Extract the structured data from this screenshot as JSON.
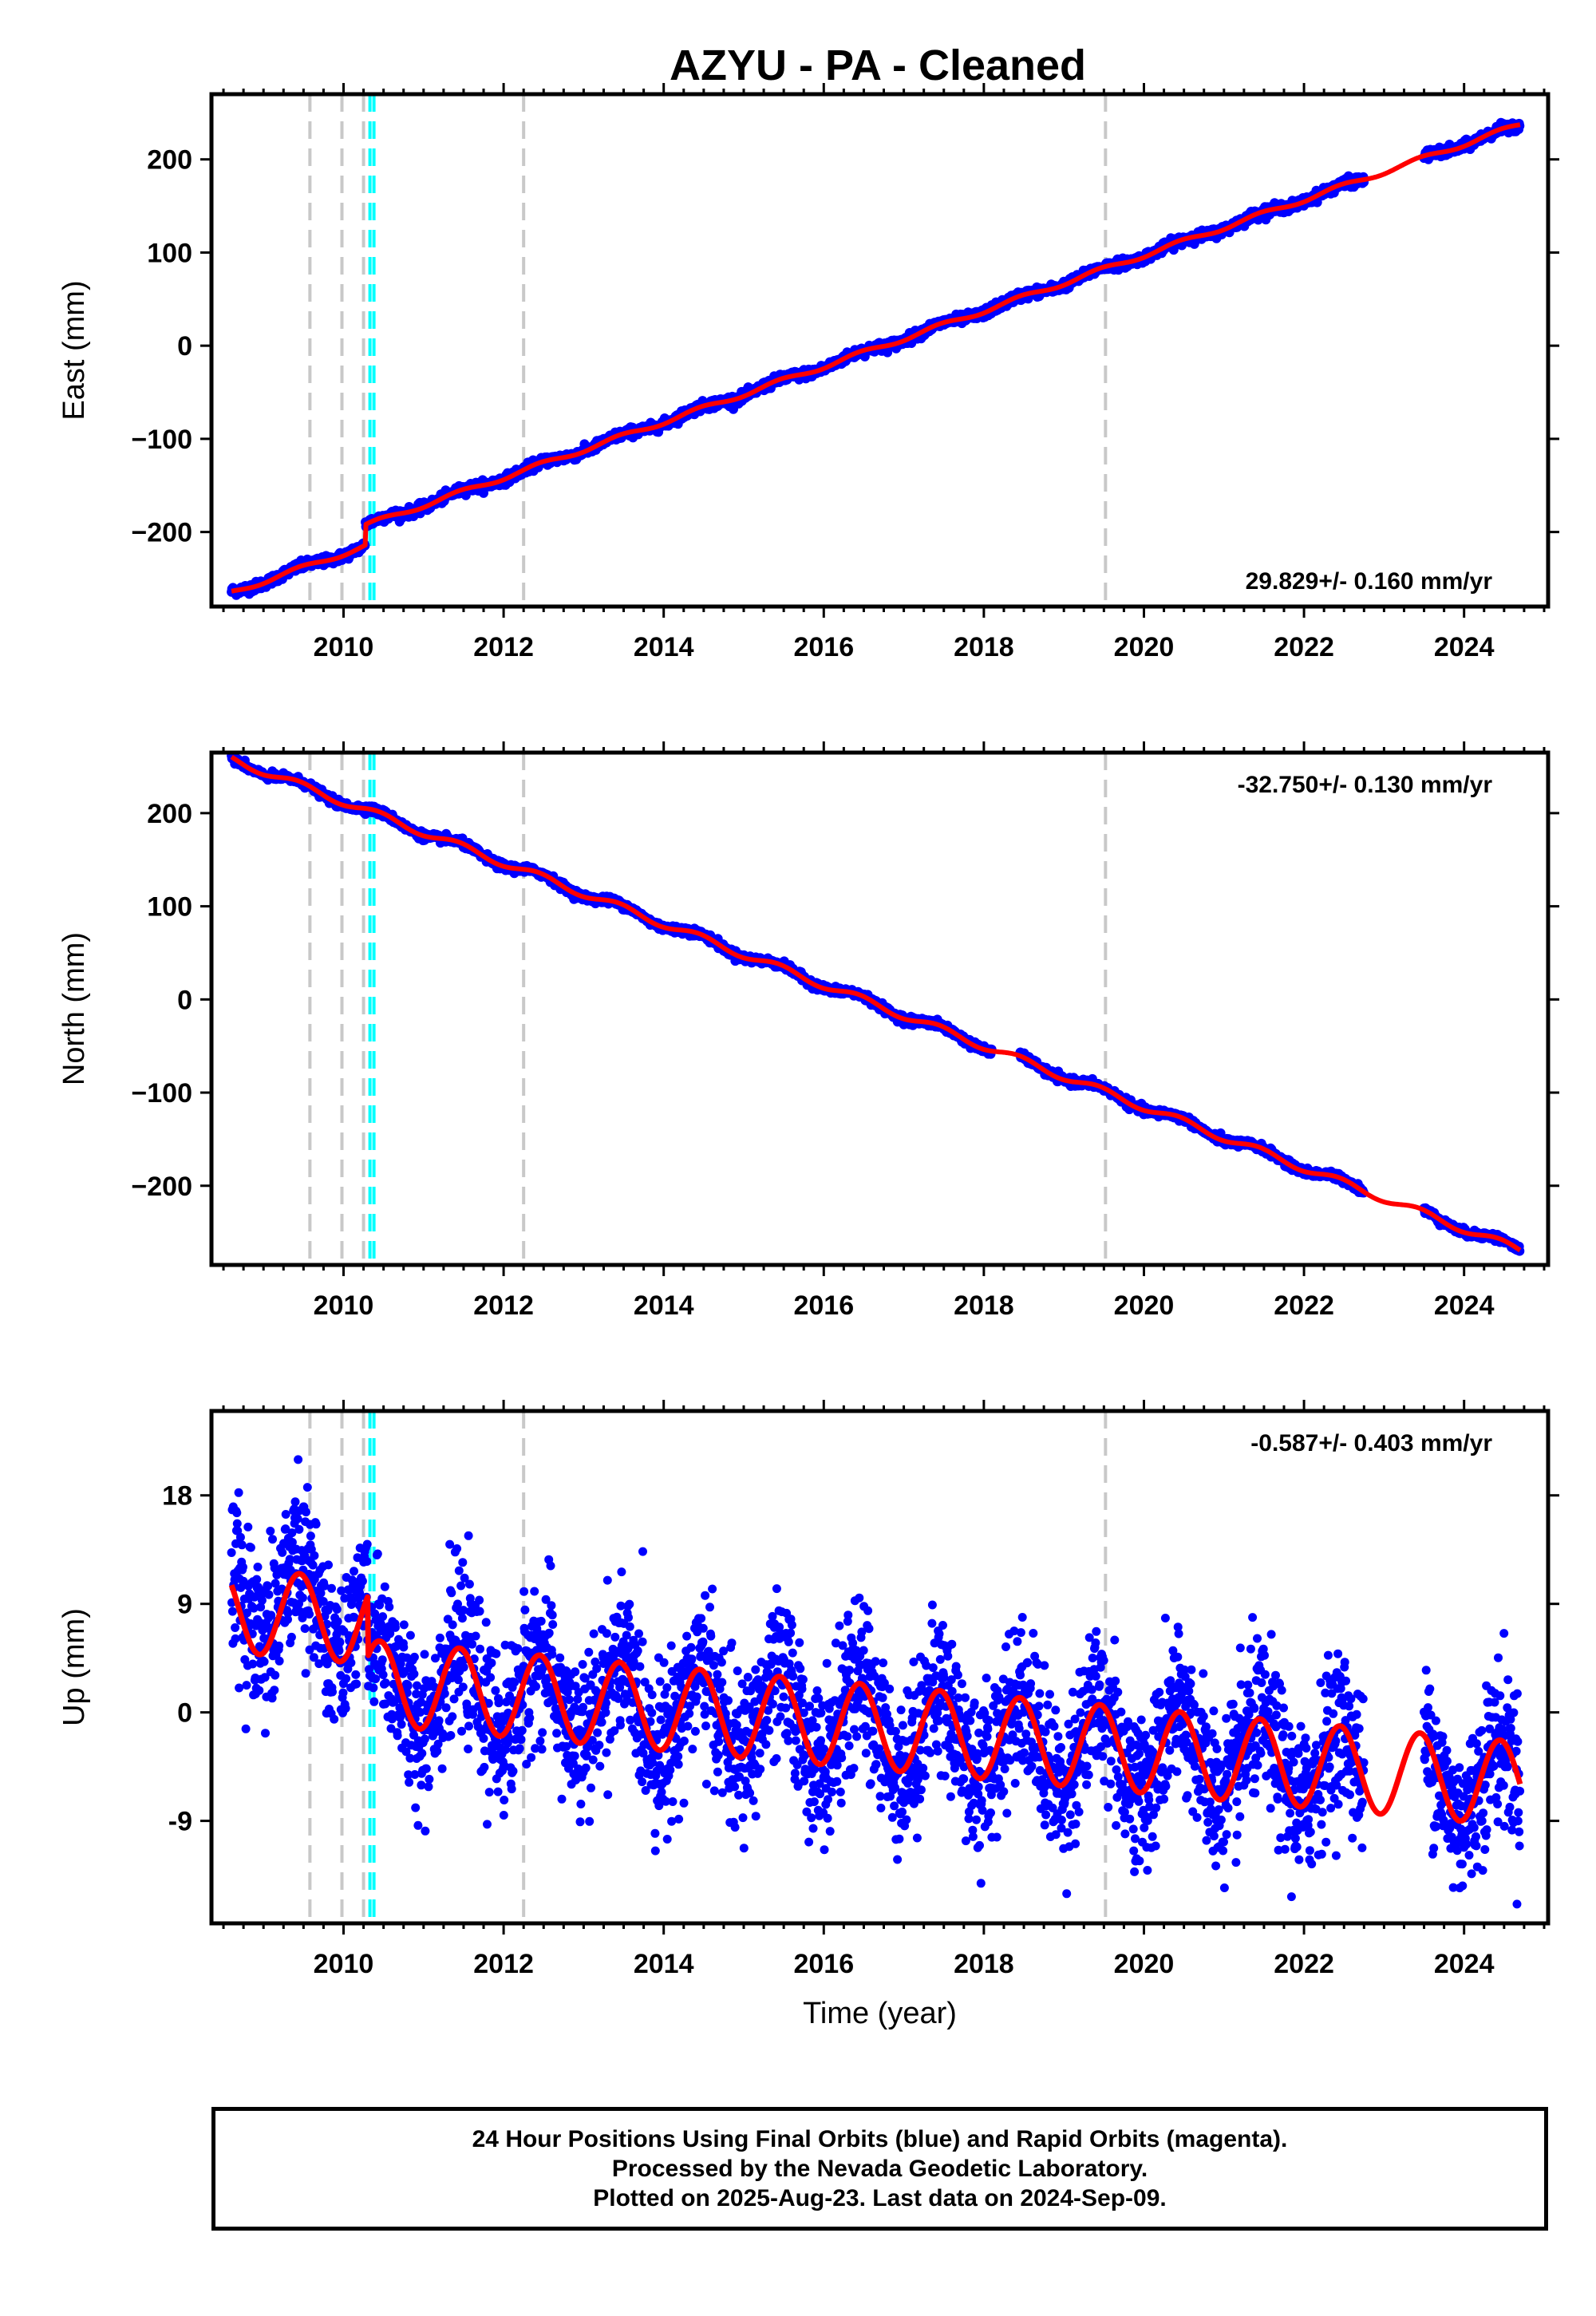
{
  "colors": {
    "data_points": "#0000ff",
    "model_fit": "#ff0000",
    "equipment_change": "#c8c8c8",
    "earthquake": "#00ffff",
    "frame": "#000000"
  },
  "chart_data": [
    {
      "type": "scatter",
      "title": "AZYU  - PA - Cleaned",
      "ylabel": "East (mm)",
      "xlabel": "",
      "xlim": [
        2008.35,
        2025.05
      ],
      "ylim": [
        -280,
        270
      ],
      "xticks": [
        2010,
        2012,
        2014,
        2016,
        2018,
        2020,
        2022,
        2024
      ],
      "xtick_labels": [
        "2010",
        "2012",
        "2014",
        "2016",
        "2018",
        "2020",
        "2022",
        "2024"
      ],
      "yticks": [
        -200,
        -100,
        0,
        100,
        200
      ],
      "ytick_labels": [
        "−200",
        "−100",
        "0",
        "100",
        "200"
      ],
      "rate": "29.829+/- 0.160 mm/yr",
      "rate_position": "bottom-right",
      "trend": {
        "t0": 2008.6,
        "y0": -265,
        "slope": 29.829,
        "offsets": [
          {
            "t": 2010.27,
            "dy": 22
          }
        ]
      },
      "segments": [
        {
          "start": 2008.6,
          "end": 2022.75
        },
        {
          "start": 2023.5,
          "end": 2024.7
        }
      ],
      "model_gaps": [
        {
          "start": 2022.75,
          "end": 2023.5
        }
      ],
      "seasonal_amplitude": 2.5,
      "scatter_noise": 2.5,
      "vertical_lines_gray": [
        2009.58,
        2009.98,
        2010.25,
        2012.25,
        2019.52
      ],
      "vertical_lines_cyan": [
        2010.33,
        2010.38
      ]
    },
    {
      "type": "scatter",
      "title": "",
      "ylabel": "North (mm)",
      "xlabel": "",
      "xlim": [
        2008.35,
        2025.05
      ],
      "ylim": [
        -285,
        265
      ],
      "xticks": [
        2010,
        2012,
        2014,
        2016,
        2018,
        2020,
        2022,
        2024
      ],
      "xtick_labels": [
        "2010",
        "2012",
        "2014",
        "2016",
        "2018",
        "2020",
        "2022",
        "2024"
      ],
      "yticks": [
        -200,
        -100,
        0,
        100,
        200
      ],
      "ytick_labels": [
        "−200",
        "−100",
        "0",
        "100",
        "200"
      ],
      "rate": "-32.750+/- 0.130 mm/yr",
      "rate_position": "top-right",
      "trend": {
        "t0": 2008.6,
        "y0": 258,
        "slope": -32.75,
        "offsets": []
      },
      "segments": [
        {
          "start": 2008.6,
          "end": 2018.1
        },
        {
          "start": 2018.45,
          "end": 2022.75
        },
        {
          "start": 2023.5,
          "end": 2024.7
        }
      ],
      "model_gaps": [
        {
          "start": 2018.1,
          "end": 2018.45
        },
        {
          "start": 2022.75,
          "end": 2023.5
        }
      ],
      "seasonal_amplitude": 4,
      "scatter_noise": 2,
      "vertical_lines_gray": [
        2009.58,
        2009.98,
        2010.25,
        2012.25,
        2019.52
      ],
      "vertical_lines_cyan": [
        2010.33,
        2010.38
      ]
    },
    {
      "type": "scatter",
      "title": "",
      "ylabel": "Up (mm)",
      "xlabel": "Time (year)",
      "xlim": [
        2008.35,
        2025.05
      ],
      "ylim": [
        -17.5,
        25
      ],
      "xticks": [
        2010,
        2012,
        2014,
        2016,
        2018,
        2020,
        2022,
        2024
      ],
      "xtick_labels": [
        "2010",
        "2012",
        "2014",
        "2016",
        "2018",
        "2020",
        "2022",
        "2024"
      ],
      "yticks": [
        -9,
        0,
        9,
        18
      ],
      "ytick_labels": [
        "-9",
        "0",
        "9",
        "18"
      ],
      "rate": "-0.587+/- 0.403 mm/yr",
      "rate_position": "top-right",
      "trend": {
        "t0": 2008.6,
        "y0": 8.5,
        "slope": -0.587,
        "offsets": [
          {
            "t": 2010.3,
            "dy": -5
          }
        ]
      },
      "segments": [
        {
          "start": 2008.6,
          "end": 2022.75
        },
        {
          "start": 2023.5,
          "end": 2024.7
        }
      ],
      "model_gaps": [],
      "seasonal_amplitude": 3.5,
      "scatter_noise": 3.2,
      "vertical_lines_gray": [
        2009.58,
        2009.98,
        2010.25,
        2012.25,
        2019.52
      ],
      "vertical_lines_cyan": [
        2010.33,
        2010.38
      ]
    }
  ],
  "footer": {
    "line1": "24 Hour Positions Using Final Orbits (blue) and Rapid Orbits (magenta).",
    "line2": "Processed by the Nevada Geodetic Laboratory.",
    "line3": "Plotted on 2025-Aug-23. Last data on 2024-Sep-09."
  }
}
